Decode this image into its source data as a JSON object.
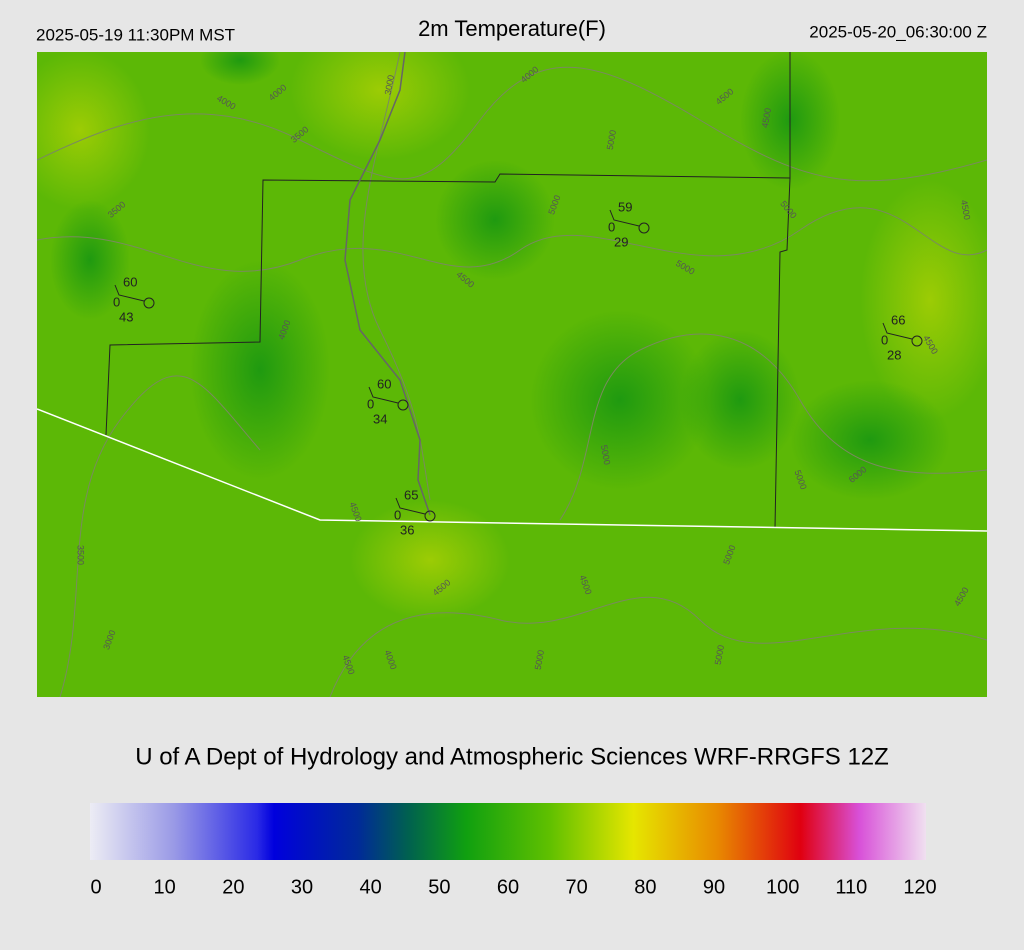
{
  "header": {
    "left": "2025-05-19 11:30PM MST",
    "title": "2m Temperature(F)",
    "right": "2025-05-20_06:30:00 Z"
  },
  "map": {
    "stations": [
      {
        "temperature": 60,
        "wind": 0,
        "dewpoint": 43
      },
      {
        "temperature": 59,
        "wind": 0,
        "dewpoint": 29
      },
      {
        "temperature": 60,
        "wind": 0,
        "dewpoint": 34
      },
      {
        "temperature": 65,
        "wind": 0,
        "dewpoint": 36
      },
      {
        "temperature": 66,
        "wind": 0,
        "dewpoint": 28
      }
    ],
    "contour_labels": [
      "4000",
      "4000",
      "3500",
      "3000",
      "4000",
      "4500",
      "5000",
      "5000",
      "4500",
      "5000",
      "5000",
      "4500",
      "4500",
      "3500",
      "4000",
      "4500",
      "5000",
      "5000",
      "6000",
      "4500",
      "4500",
      "4500",
      "5000",
      "3500",
      "3000",
      "4500",
      "4000",
      "5000",
      "5000",
      "4500"
    ]
  },
  "credit": "U of A Dept of Hydrology and Atmospheric Sciences WRF-RRGFS 12Z",
  "colorbar": {
    "ticks": [
      0,
      10,
      20,
      30,
      40,
      50,
      60,
      70,
      80,
      90,
      100,
      110,
      120
    ]
  }
}
